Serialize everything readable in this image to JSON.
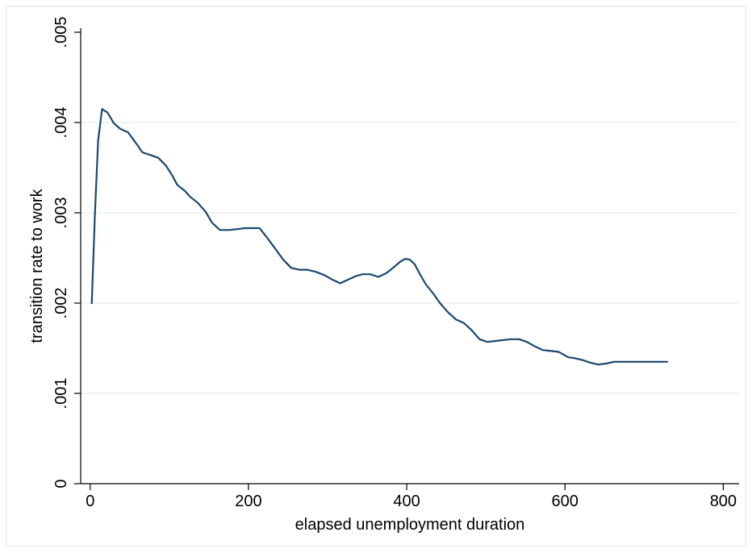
{
  "chart_data": {
    "type": "line",
    "title": "",
    "xlabel": "elapsed unemployment duration",
    "ylabel": "transition rate to work",
    "xlim": [
      -12,
      820
    ],
    "ylim": [
      0,
      0.005
    ],
    "xticks": [
      0,
      200,
      400,
      600,
      800
    ],
    "xtick_labels": [
      "0",
      "200",
      "400",
      "600",
      "800"
    ],
    "yticks": [
      0,
      0.001,
      0.002,
      0.003,
      0.004,
      0.005
    ],
    "ytick_labels": [
      "0",
      ".001",
      ".002",
      ".003",
      ".004",
      ".005"
    ],
    "grid": "horizontal",
    "legend": "none",
    "colors": {
      "line": "#1a476f",
      "grid": "#eaf2f3",
      "axis": "#000000",
      "frame": "#e6e6e6"
    },
    "series": [
      {
        "x": [
          2,
          6,
          10,
          15,
          22,
          30,
          38,
          48,
          58,
          66,
          76,
          86,
          96,
          104,
          110,
          120,
          126,
          136,
          146,
          154,
          164,
          176,
          186,
          196,
          206,
          214,
          224,
          234,
          244,
          254,
          264,
          274,
          284,
          296,
          306,
          316,
          326,
          336,
          344,
          354,
          364,
          374,
          384,
          392,
          398,
          404,
          410,
          416,
          424,
          434,
          442,
          452,
          462,
          472,
          482,
          492,
          502,
          512,
          522,
          532,
          542,
          552,
          562,
          572,
          582,
          592,
          598,
          604,
          612,
          622,
          632,
          642,
          652,
          662,
          672,
          682,
          692,
          702,
          712,
          722,
          730
        ],
        "y": [
          0.00199,
          0.003,
          0.0038,
          0.00415,
          0.00411,
          0.00399,
          0.00393,
          0.00389,
          0.00377,
          0.00367,
          0.00364,
          0.00361,
          0.00352,
          0.00341,
          0.00331,
          0.00324,
          0.00318,
          0.00311,
          0.00301,
          0.00289,
          0.00281,
          0.00281,
          0.00282,
          0.00283,
          0.00283,
          0.00283,
          0.00272,
          0.0026,
          0.00248,
          0.00239,
          0.00237,
          0.00237,
          0.00235,
          0.00231,
          0.00226,
          0.00222,
          0.00226,
          0.0023,
          0.00232,
          0.00232,
          0.00229,
          0.00233,
          0.0024,
          0.00246,
          0.00249,
          0.00248,
          0.00243,
          0.00233,
          0.00221,
          0.0021,
          0.002,
          0.0019,
          0.00182,
          0.00178,
          0.0017,
          0.0016,
          0.00157,
          0.00158,
          0.00159,
          0.0016,
          0.0016,
          0.00157,
          0.00152,
          0.00148,
          0.00147,
          0.00146,
          0.00143,
          0.0014,
          0.00139,
          0.00137,
          0.00134,
          0.00132,
          0.00133,
          0.00135,
          0.00135,
          0.00135,
          0.00135,
          0.00135,
          0.00135,
          0.00135,
          0.00135
        ]
      }
    ]
  }
}
